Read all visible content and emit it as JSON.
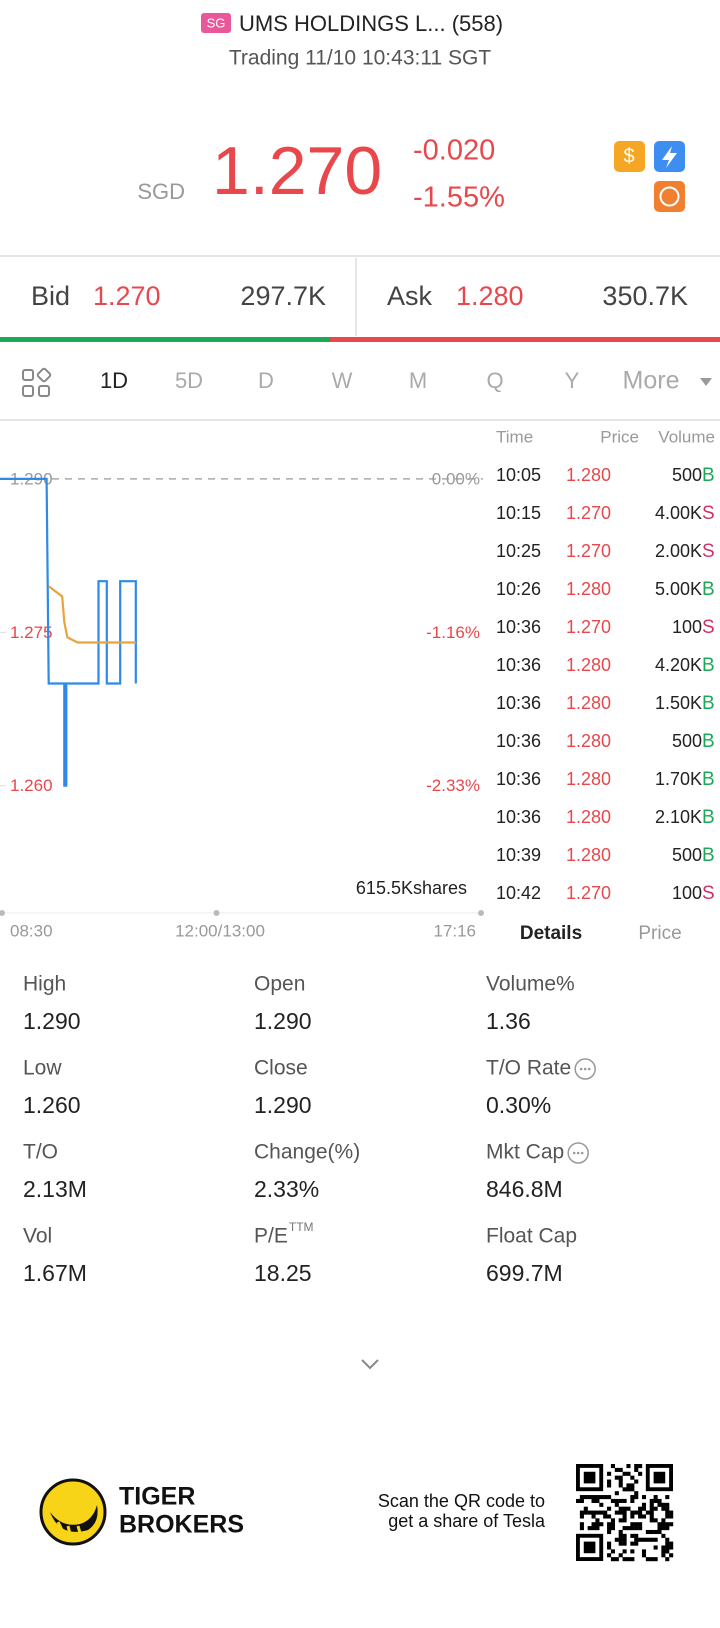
{
  "header": {
    "badge": "SG",
    "title": "UMS HOLDINGS L... (558)",
    "status": "Trading 11/10 10:43:11 SGT"
  },
  "quote": {
    "currency": "SGD",
    "price": "1.270",
    "change": "-0.020",
    "change_pct": "-1.55%"
  },
  "bid_ask": {
    "bid_label": "Bid",
    "bid_price": "1.270",
    "bid_size": "297.7K",
    "ask_label": "Ask",
    "ask_price": "1.280",
    "ask_size": "350.7K"
  },
  "tabs": [
    "1D",
    "5D",
    "D",
    "W",
    "M",
    "Q",
    "Y",
    "More"
  ],
  "chart": {
    "xlim": [
      0,
      466
    ],
    "ylim": [
      1.25,
      1.294
    ],
    "yticks": [
      {
        "value": 1.29,
        "label": "1.290"
      },
      {
        "value": 1.275,
        "label": "1.275"
      },
      {
        "value": 1.26,
        "label": "1.260"
      }
    ],
    "pct_labels": [
      "0.00%",
      "-1.16%",
      "-2.33%"
    ],
    "ref_value": 1.29,
    "x_labels": [
      "08:30",
      "12:00/13:00",
      "17:16"
    ],
    "volume_label": "615.5Kshares",
    "series": [
      {
        "color": "#2e8ae6",
        "x": [
          0,
          45,
          47,
          62,
          62,
          64,
          64,
          95,
          95,
          103,
          103,
          116,
          116,
          131,
          131
        ],
        "values": [
          1.29,
          1.29,
          1.27,
          1.27,
          1.26,
          1.26,
          1.27,
          1.27,
          1.28,
          1.28,
          1.27,
          1.27,
          1.28,
          1.28,
          1.27
        ]
      },
      {
        "color": "#e8a33d",
        "x": [
          47,
          60,
          62,
          65,
          75,
          90,
          131
        ],
        "values": [
          1.2795,
          1.2785,
          1.276,
          1.2745,
          1.274,
          1.274,
          1.274
        ]
      }
    ]
  },
  "trades": {
    "headers": [
      "Time",
      "Price",
      "Volume"
    ],
    "rows": [
      [
        "10:05",
        "1.280",
        "500",
        "B"
      ],
      [
        "10:15",
        "1.270",
        "4.00K",
        "S"
      ],
      [
        "10:25",
        "1.270",
        "2.00K",
        "S"
      ],
      [
        "10:26",
        "1.280",
        "5.00K",
        "B"
      ],
      [
        "10:36",
        "1.270",
        "100",
        "S"
      ],
      [
        "10:36",
        "1.280",
        "4.20K",
        "B"
      ],
      [
        "10:36",
        "1.280",
        "1.50K",
        "B"
      ],
      [
        "10:36",
        "1.280",
        "500",
        "B"
      ],
      [
        "10:36",
        "1.280",
        "1.70K",
        "B"
      ],
      [
        "10:36",
        "1.280",
        "2.10K",
        "B"
      ],
      [
        "10:39",
        "1.280",
        "500",
        "B"
      ],
      [
        "10:42",
        "1.270",
        "100",
        "S"
      ]
    ]
  },
  "detail_tabs": [
    "Details",
    "Price"
  ],
  "stats": [
    {
      "label": "High",
      "value": "1.290"
    },
    {
      "label": "Open",
      "value": "1.290"
    },
    {
      "label": "Volume%",
      "value": "1.36"
    },
    {
      "label": "Low",
      "value": "1.260"
    },
    {
      "label": "Close",
      "value": "1.290"
    },
    {
      "label": "T/O Rate",
      "value": "0.30%"
    },
    {
      "label": "T/O",
      "value": "2.13M"
    },
    {
      "label": "Change(%)",
      "value": "2.33%"
    },
    {
      "label": "Mkt Cap",
      "value": "846.8M"
    },
    {
      "label": "Vol",
      "value": "1.67M"
    },
    {
      "label": "P/E",
      "sup": "TTM",
      "value": "18.25"
    },
    {
      "label": "Float Cap",
      "value": "699.7M"
    }
  ],
  "footer": {
    "brand": [
      "TIGER",
      "BROKERS"
    ],
    "promo": [
      "Scan the QR code to",
      "get a share of Tesla"
    ]
  }
}
